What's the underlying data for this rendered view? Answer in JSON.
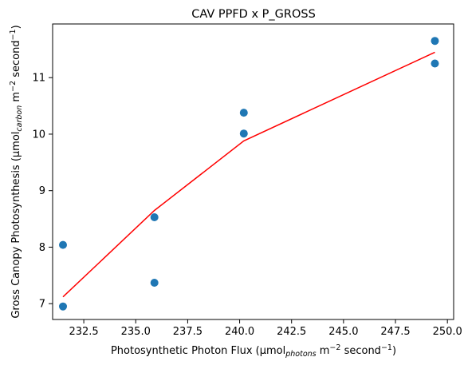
{
  "chart_data": {
    "type": "scatter",
    "title": "CAV PPFD x P_GROSS",
    "xlabel": {
      "main": "Photosynthetic Photon Flux (µmol",
      "sub": "photons",
      "mid": " m",
      "sup1": "−2",
      "mid2": " second",
      "sup2": "−1",
      "end": ")"
    },
    "ylabel": {
      "main": "Gross Canopy Photosynthesis (µmol",
      "sub": "carbon",
      "mid": " m",
      "sup1": "−2",
      "mid2": " second",
      "sup2": "−1",
      "end": ")"
    },
    "xlim": [
      231.0,
      250.3
    ],
    "ylim": [
      6.72,
      11.95
    ],
    "xticks": [
      232.5,
      235.0,
      237.5,
      240.0,
      242.5,
      245.0,
      247.5,
      250.0
    ],
    "xtick_labels": [
      "232.5",
      "235.0",
      "237.5",
      "240.0",
      "242.5",
      "245.0",
      "247.5",
      "250.0"
    ],
    "yticks": [
      7,
      8,
      9,
      10,
      11
    ],
    "ytick_labels": [
      "7",
      "8",
      "9",
      "10",
      "11"
    ],
    "grid": false,
    "series": [
      {
        "type": "scatter",
        "color": "#1f77b4",
        "x": [
          231.5,
          231.5,
          235.9,
          235.9,
          240.2,
          240.2,
          249.4,
          249.4
        ],
        "y": [
          6.95,
          8.04,
          7.37,
          8.53,
          10.01,
          10.38,
          11.25,
          11.65
        ]
      },
      {
        "type": "line",
        "color": "#ff0000",
        "x": [
          231.5,
          235.9,
          240.2,
          249.4
        ],
        "y": [
          7.12,
          8.65,
          9.88,
          11.45
        ]
      }
    ]
  }
}
